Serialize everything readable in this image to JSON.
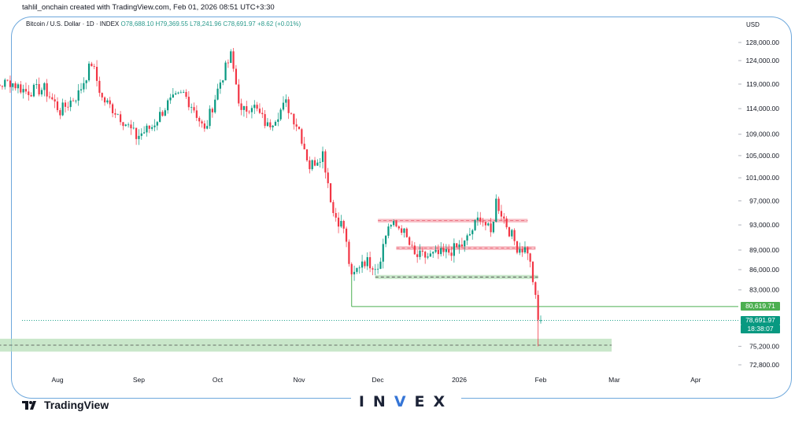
{
  "header": {
    "attribution": "tahlil_onchain created with TradingView.com, Feb 01, 2026 08:51 UTC+3:30"
  },
  "legend": {
    "symbol": "Bitcoin / U.S. Dollar · 1D · INDEX",
    "ohlc": "O78,688.10 H79,369.55 L78,241.96 C78,691.97 +8.62 (+0.01%)"
  },
  "axis": {
    "currency": "USD"
  },
  "price_tags": {
    "level": "80,619.71",
    "last": "78,691.97",
    "countdown": "18:38:07"
  },
  "branding": {
    "tradingview": "TradingView",
    "watermark_left": "IN",
    "watermark_v": "V",
    "watermark_right": "EX"
  },
  "colors": {
    "up": "#089981",
    "down": "#f23645",
    "support_zone": "#b7dfb8",
    "resistance_zone": "#f6a8b2",
    "level_line": "#4caf50",
    "frame": "#6ea8dc"
  },
  "chart_data": {
    "type": "candlestick",
    "series_name": "Bitcoin / U.S. Dollar",
    "timeframe": "1D",
    "y_axis": {
      "scale": "log",
      "ticks": [
        "128,000.00",
        "124,000.00",
        "119,000.00",
        "114,000.00",
        "109,000.00",
        "105,000.00",
        "101,000.00",
        "97,000.00",
        "93,000.00",
        "89,000.00",
        "86,000.00",
        "83,000.00",
        "75,200.00",
        "72,800.00"
      ],
      "tick_values": [
        128000,
        124000,
        119000,
        114000,
        109000,
        105000,
        101000,
        97000,
        93000,
        89000,
        86000,
        83000,
        75200,
        72800
      ]
    },
    "x_axis": {
      "ticks": [
        "Aug",
        "Sep",
        "Oct",
        "Nov",
        "Dec",
        "2026",
        "Feb",
        "Mar",
        "Apr"
      ],
      "tick_dates": [
        "2025-08-01",
        "2025-09-01",
        "2025-10-01",
        "2025-11-01",
        "2025-12-01",
        "2026-01-01",
        "2026-02-01",
        "2026-03-01",
        "2026-04-01"
      ]
    },
    "ohlc_last": {
      "date": "2026-02-01",
      "open": 78688.1,
      "high": 79369.55,
      "low": 78241.96,
      "close": 78691.97,
      "change": 8.62,
      "change_pct": 0.01
    },
    "approx_closes": [
      {
        "date": "2025-07-01",
        "close": 118000
      },
      {
        "date": "2025-07-08",
        "close": 118500
      },
      {
        "date": "2025-07-14",
        "close": 119500
      },
      {
        "date": "2025-07-20",
        "close": 117500
      },
      {
        "date": "2025-07-27",
        "close": 118000
      },
      {
        "date": "2025-08-02",
        "close": 113500
      },
      {
        "date": "2025-08-09",
        "close": 117000
      },
      {
        "date": "2025-08-14",
        "close": 123500
      },
      {
        "date": "2025-08-18",
        "close": 116000
      },
      {
        "date": "2025-08-24",
        "close": 113000
      },
      {
        "date": "2025-08-31",
        "close": 108500
      },
      {
        "date": "2025-09-06",
        "close": 110500
      },
      {
        "date": "2025-09-12",
        "close": 115000
      },
      {
        "date": "2025-09-18",
        "close": 117000
      },
      {
        "date": "2025-09-22",
        "close": 114000
      },
      {
        "date": "2025-09-26",
        "close": 109500
      },
      {
        "date": "2025-10-02",
        "close": 119500
      },
      {
        "date": "2025-10-06",
        "close": 125000
      },
      {
        "date": "2025-10-10",
        "close": 113000
      },
      {
        "date": "2025-10-14",
        "close": 115000
      },
      {
        "date": "2025-10-20",
        "close": 110500
      },
      {
        "date": "2025-10-27",
        "close": 115000
      },
      {
        "date": "2025-11-01",
        "close": 110000
      },
      {
        "date": "2025-11-05",
        "close": 103000
      },
      {
        "date": "2025-11-10",
        "close": 105500
      },
      {
        "date": "2025-11-14",
        "close": 95000
      },
      {
        "date": "2025-11-18",
        "close": 92500
      },
      {
        "date": "2025-11-21",
        "close": 84500
      },
      {
        "date": "2025-11-25",
        "close": 87500
      },
      {
        "date": "2025-12-01",
        "close": 86500
      },
      {
        "date": "2025-12-05",
        "close": 93000
      },
      {
        "date": "2025-12-10",
        "close": 92500
      },
      {
        "date": "2025-12-15",
        "close": 88000
      },
      {
        "date": "2025-12-20",
        "close": 88000
      },
      {
        "date": "2025-12-27",
        "close": 88500
      },
      {
        "date": "2026-01-03",
        "close": 90000
      },
      {
        "date": "2026-01-09",
        "close": 94500
      },
      {
        "date": "2026-01-13",
        "close": 91500
      },
      {
        "date": "2026-01-15",
        "close": 97000
      },
      {
        "date": "2026-01-19",
        "close": 93000
      },
      {
        "date": "2026-01-23",
        "close": 89500
      },
      {
        "date": "2026-01-27",
        "close": 89000
      },
      {
        "date": "2026-01-29",
        "close": 84500
      },
      {
        "date": "2026-01-31",
        "close": 78600
      },
      {
        "date": "2026-02-01",
        "close": 78692
      }
    ],
    "zones": [
      {
        "kind": "resistance",
        "from": "2025-12-01",
        "to": "2026-01-27",
        "price_low": 93400,
        "price_high": 94000
      },
      {
        "kind": "resistance",
        "from": "2025-12-08",
        "to": "2026-01-30",
        "price_low": 89000,
        "price_high": 89600
      },
      {
        "kind": "support",
        "from": "2025-11-30",
        "to": "2026-01-31",
        "price_low": 84600,
        "price_high": 85200
      },
      {
        "kind": "support",
        "from": "2025-07-01",
        "to": "2026-02-28",
        "price_low": 74500,
        "price_high": 76200
      }
    ],
    "levels": [
      {
        "kind": "horizontal",
        "price": 80619.71,
        "from": "2025-11-21"
      },
      {
        "kind": "last_price",
        "price": 78691.97
      }
    ],
    "grid": false,
    "legend_position": "top-left"
  }
}
